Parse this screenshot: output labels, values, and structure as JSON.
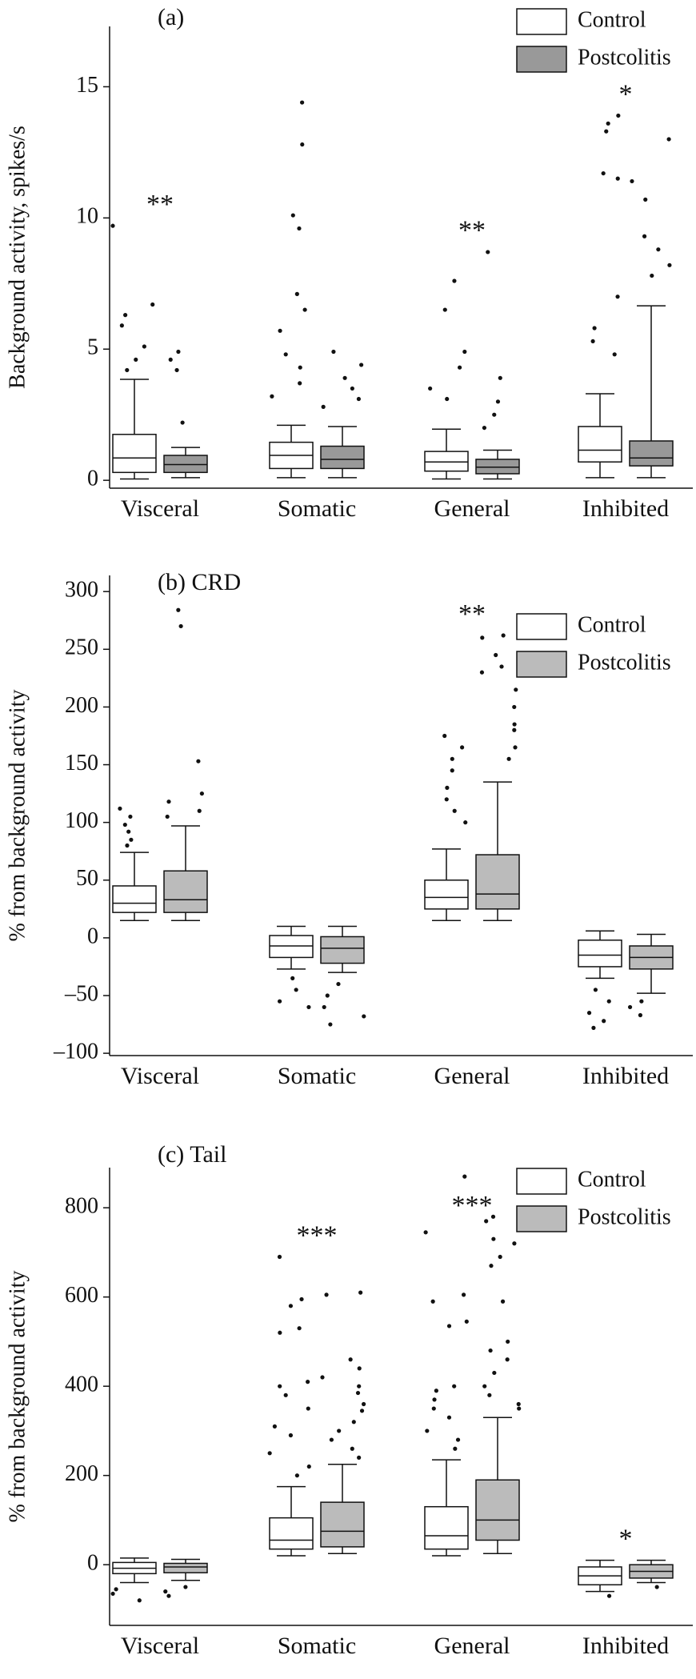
{
  "chart_data": [
    {
      "type": "box",
      "title": "(a)",
      "ylabel": "Background activity, spikes/s",
      "categories": [
        "Visceral",
        "Somatic",
        "General",
        "Inhibited"
      ],
      "ylim": [
        -0.3,
        17.3
      ],
      "yticks": [
        0,
        5,
        10,
        15
      ],
      "legend": "upper right",
      "annotations": [
        "**",
        null,
        "**",
        "*"
      ],
      "series": [
        {
          "name": "Control",
          "color": "#ffffff",
          "boxes": [
            {
              "whislo": 0.05,
              "q1": 0.3,
              "med": 0.85,
              "q3": 1.75,
              "whishi": 3.85,
              "points": [
                9.7,
                6.7,
                6.3,
                5.9,
                5.1,
                4.6,
                4.2
              ]
            },
            {
              "whislo": 0.1,
              "q1": 0.45,
              "med": 0.95,
              "q3": 1.45,
              "whishi": 2.1,
              "points": [
                14.4,
                12.8,
                10.1,
                9.6,
                7.1,
                6.5,
                5.7,
                4.8,
                4.3,
                3.7,
                3.2
              ]
            },
            {
              "whislo": 0.05,
              "q1": 0.35,
              "med": 0.7,
              "q3": 1.1,
              "whishi": 1.95,
              "points": [
                7.6,
                6.5,
                4.9,
                4.3,
                3.5,
                3.1
              ]
            },
            {
              "whislo": 0.1,
              "q1": 0.7,
              "med": 1.15,
              "q3": 2.05,
              "whishi": 3.3,
              "points": [
                13.9,
                13.6,
                13.3,
                11.7,
                11.5,
                7.0,
                5.8,
                5.3,
                4.8
              ]
            }
          ]
        },
        {
          "name": "Postcolitis",
          "color": "#999999",
          "boxes": [
            {
              "whislo": 0.1,
              "q1": 0.3,
              "med": 0.6,
              "q3": 0.95,
              "whishi": 1.25,
              "points": [
                4.9,
                4.6,
                4.2,
                2.2
              ]
            },
            {
              "whislo": 0.1,
              "q1": 0.45,
              "med": 0.8,
              "q3": 1.3,
              "whishi": 2.05,
              "points": [
                4.9,
                4.4,
                3.9,
                3.5,
                3.1,
                2.8
              ]
            },
            {
              "whislo": 0.05,
              "q1": 0.25,
              "med": 0.5,
              "q3": 0.8,
              "whishi": 1.15,
              "points": [
                8.7,
                3.9,
                3.0,
                2.5,
                2.0
              ]
            },
            {
              "whislo": 0.1,
              "q1": 0.55,
              "med": 0.85,
              "q3": 1.5,
              "whishi": 6.65,
              "points": [
                13.0,
                11.4,
                10.7,
                9.3,
                8.8,
                8.2,
                7.8
              ]
            }
          ]
        }
      ]
    },
    {
      "type": "box",
      "title": "(b)  CRD",
      "ylabel": "% from background activity",
      "categories": [
        "Visceral",
        "Somatic",
        "General",
        "Inhibited"
      ],
      "ylim": [
        -102,
        314
      ],
      "yticks": [
        {
          "value": -100,
          "label": "–100"
        },
        {
          "value": -50,
          "label": "–50"
        },
        0,
        50,
        100,
        150,
        200,
        250,
        300
      ],
      "legend": "upper right",
      "annotations": [
        null,
        null,
        "**",
        null
      ],
      "series": [
        {
          "name": "Control",
          "color": "#ffffff",
          "boxes": [
            {
              "whislo": 15,
              "q1": 22,
              "med": 30,
              "q3": 45,
              "whishi": 74,
              "points": [
                112,
                105,
                98,
                92,
                85,
                80
              ]
            },
            {
              "whislo": -27,
              "q1": -17,
              "med": -7,
              "q3": 2,
              "whishi": 10,
              "points": [
                -35,
                -45,
                -55,
                -60
              ]
            },
            {
              "whislo": 15,
              "q1": 25,
              "med": 35,
              "q3": 50,
              "whishi": 77,
              "points": [
                175,
                165,
                155,
                145,
                130,
                120,
                110,
                100
              ]
            },
            {
              "whislo": -35,
              "q1": -25,
              "med": -15,
              "q3": -2,
              "whishi": 6,
              "points": [
                -45,
                -55,
                -65,
                -72,
                -78
              ]
            }
          ]
        },
        {
          "name": "Postcolitis",
          "color": "#bbbbbb",
          "boxes": [
            {
              "whislo": 15,
              "q1": 22,
              "med": 33,
              "q3": 58,
              "whishi": 97,
              "points": [
                284,
                270,
                153,
                125,
                118,
                110,
                105
              ]
            },
            {
              "whislo": -30,
              "q1": -22,
              "med": -9,
              "q3": 1,
              "whishi": 10,
              "points": [
                -40,
                -50,
                -60,
                -68,
                -75
              ]
            },
            {
              "whislo": 15,
              "q1": 25,
              "med": 38,
              "q3": 72,
              "whishi": 135,
              "points": [
                262,
                260,
                245,
                235,
                230,
                215,
                200,
                185,
                180,
                165,
                155
              ]
            },
            {
              "whislo": -48,
              "q1": -27,
              "med": -17,
              "q3": -7,
              "whishi": 3,
              "points": [
                -55,
                -60,
                -67
              ]
            }
          ]
        }
      ]
    },
    {
      "type": "box",
      "title": "(c)  Tail",
      "ylabel": "% from background activity",
      "categories": [
        "Visceral",
        "Somatic",
        "General",
        "Inhibited"
      ],
      "ylim": [
        -136,
        890
      ],
      "yticks": [
        0,
        200,
        400,
        600,
        800
      ],
      "legend": "upper right",
      "annotations": [
        null,
        "***",
        "***",
        "*"
      ],
      "series": [
        {
          "name": "Control",
          "color": "#ffffff",
          "boxes": [
            {
              "whislo": -40,
              "q1": -20,
              "med": -8,
              "q3": 5,
              "whishi": 15,
              "points": [
                -55,
                -65,
                -80
              ]
            },
            {
              "whislo": 20,
              "q1": 35,
              "med": 55,
              "q3": 105,
              "whishi": 175,
              "points": [
                690,
                595,
                580,
                530,
                520,
                410,
                400,
                380,
                350,
                310,
                290,
                250,
                220,
                200
              ]
            },
            {
              "whislo": 20,
              "q1": 35,
              "med": 65,
              "q3": 130,
              "whishi": 235,
              "points": [
                870,
                745,
                605,
                590,
                545,
                535,
                400,
                390,
                370,
                350,
                330,
                300,
                280,
                260
              ]
            },
            {
              "whislo": -60,
              "q1": -45,
              "med": -25,
              "q3": -5,
              "whishi": 10,
              "points": [
                -70
              ]
            }
          ]
        },
        {
          "name": "Postcolitis",
          "color": "#bbbbbb",
          "boxes": [
            {
              "whislo": -35,
              "q1": -18,
              "med": -5,
              "q3": 3,
              "whishi": 12,
              "points": [
                -50,
                -60,
                -70
              ]
            },
            {
              "whislo": 25,
              "q1": 40,
              "med": 75,
              "q3": 140,
              "whishi": 225,
              "points": [
                610,
                605,
                460,
                440,
                420,
                400,
                385,
                360,
                345,
                320,
                300,
                280,
                260,
                240
              ]
            },
            {
              "whislo": 25,
              "q1": 55,
              "med": 100,
              "q3": 190,
              "whishi": 330,
              "points": [
                780,
                770,
                730,
                720,
                690,
                670,
                590,
                500,
                480,
                460,
                430,
                400,
                380,
                360,
                350
              ]
            },
            {
              "whislo": -40,
              "q1": -30,
              "med": -15,
              "q3": 0,
              "whishi": 10,
              "points": [
                -50
              ]
            }
          ]
        }
      ]
    }
  ]
}
